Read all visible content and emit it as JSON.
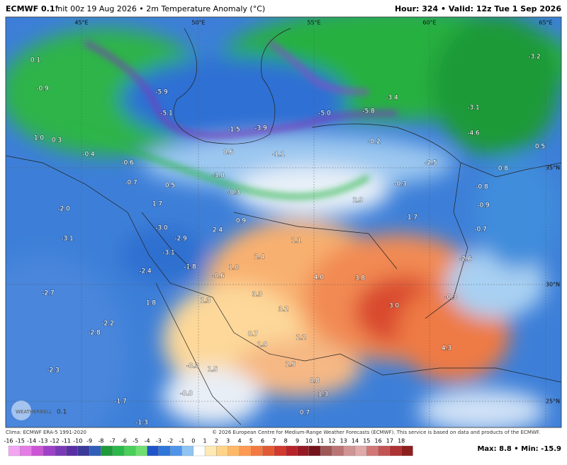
{
  "header": {
    "model": "ECMWF 0.1°",
    "title": "Init 00z 19 Aug 2026 • 2m Temperature Anomaly (°C)",
    "right": "Hour: 324 • Valid: 12z Tue 1 Sep 2026"
  },
  "grid_labels": [
    "45°E",
    "50°E",
    "55°E",
    "60°E",
    "65°E",
    "35°N",
    "30°N",
    "25°N"
  ],
  "map_labels": [
    "0.1",
    "-0.9",
    "1.0",
    "0.3",
    "-0.4",
    "-0.6",
    "-0.7",
    "0.5",
    "1.7",
    "-2.0",
    "-3.1",
    "-3.0",
    "-2.9",
    "-3.1",
    "-2.4",
    "-1.8",
    "-0.6",
    "1.0",
    "2.4",
    "0.9",
    "1.1",
    "2.4",
    "3.3",
    "3.2",
    "4.0",
    "3.8",
    "3.0",
    "2.9",
    "1.7",
    "-0.3",
    "-0.3",
    "-3.0",
    "0.6",
    "-1.1",
    "-0.2",
    "-2.5",
    "-5.0",
    "-5.8",
    "-3.1",
    "-4.6",
    "-3.2",
    "0.5",
    "0.8",
    "-0.8",
    "-0.9",
    "-0.7",
    "-2.6",
    "-0.3",
    "4.3",
    "-1.5",
    "-3.9",
    "-5.1",
    "-5.9",
    "-3.4",
    "1.3",
    "-2.7",
    "-2.2",
    "-2.8",
    "-2.3",
    "-1.7",
    "-1.3",
    "-0.8",
    "-0.3",
    "1.5",
    "0.7",
    "2.2",
    "2.5",
    "0.8",
    "1.3",
    "0.7",
    "1.9",
    "1.8"
  ],
  "watermark": {
    "brand": "WEATHERBELL",
    "res": "0.1"
  },
  "footer": {
    "source": "Clima: ECMWF ERA-5 1991-2020",
    "copyright": "© 2026 European Centre for Medium-Range Weather Forecasts (ECMWF). This service is based on data and products of the ECMWF.",
    "maxmin": "Max: 8.8 • Min: -15.9"
  },
  "colorbar": {
    "ticks": [
      -16,
      -15,
      -14,
      -13,
      -12,
      -11,
      -10,
      -9,
      -8,
      -7,
      -6,
      -5,
      -4,
      -3,
      -2,
      -1,
      0,
      1,
      2,
      3,
      4,
      5,
      6,
      7,
      8,
      9,
      10,
      11,
      12,
      13,
      14,
      15,
      16,
      17,
      18
    ],
    "colors": [
      "#f2a6f2",
      "#e57be5",
      "#cc55d5",
      "#a040c8",
      "#7a3ab8",
      "#5a2fa6",
      "#3a3a9a",
      "#2f5fb8",
      "#1f9a3a",
      "#2bb84a",
      "#49cf5a",
      "#6fe070",
      "#1f55c8",
      "#2f76da",
      "#4e95ea",
      "#8fc3f2",
      "#ffffff",
      "#ffe9b3",
      "#ffd488",
      "#ffb866",
      "#ff9a52",
      "#f27a42",
      "#e25a34",
      "#d13a2e",
      "#b8232a",
      "#961a24",
      "#74131c",
      "#9e5656",
      "#bb7474",
      "#d09494",
      "#e0aaaa",
      "#d27777",
      "#c25454",
      "#ad3434",
      "#8e1f1f"
    ]
  }
}
